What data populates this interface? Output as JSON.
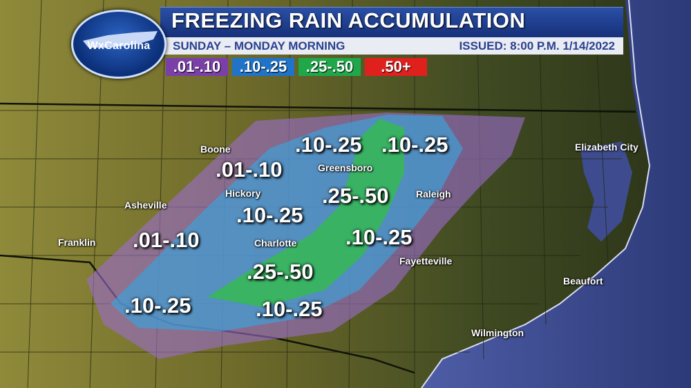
{
  "brand": {
    "logo_text": "WxCarolina"
  },
  "header": {
    "title": "FREEZING RAIN ACCUMULATION",
    "subtitle": "SUNDAY – MONDAY MORNING",
    "issued": "ISSUED: 8:00 P.M. 1/14/2022"
  },
  "legend": [
    {
      "label": ".01-.10",
      "color": "#7b3fa8"
    },
    {
      "label": ".10-.25",
      "color": "#1f73c9"
    },
    {
      "label": ".25-.50",
      "color": "#1fa84a"
    },
    {
      "label": ".50+",
      "color": "#e0201d"
    }
  ],
  "cities": {
    "boone": "Boone",
    "hickory": "Hickory",
    "asheville": "Asheville",
    "franklin": "Franklin",
    "charlotte": "Charlotte",
    "greensboro": "Greensboro",
    "raleigh": "Raleigh",
    "fayetteville": "Fayetteville",
    "wilmington": "Wilmington",
    "beaufort": "Beaufort",
    "elizabeth_city": "Elizabeth City"
  },
  "amounts": {
    "purple_west": ".01-.10",
    "purple_north": ".01-.10",
    "blue_north_1": ".10-.25",
    "blue_north_2": ".10-.25",
    "green_north": ".25-.50",
    "blue_mid_west": ".10-.25",
    "blue_mid_east": ".10-.25",
    "green_south": ".25-.50",
    "blue_south_west": ".10-.25",
    "blue_south_mid": ".10-.25"
  },
  "colors": {
    "zone_purple": "#9b6ccf",
    "zone_blue": "#3f9fd6",
    "zone_green": "#2fc23c",
    "ocean": "#3b4a8c",
    "header_blue": "#1d3c92"
  }
}
